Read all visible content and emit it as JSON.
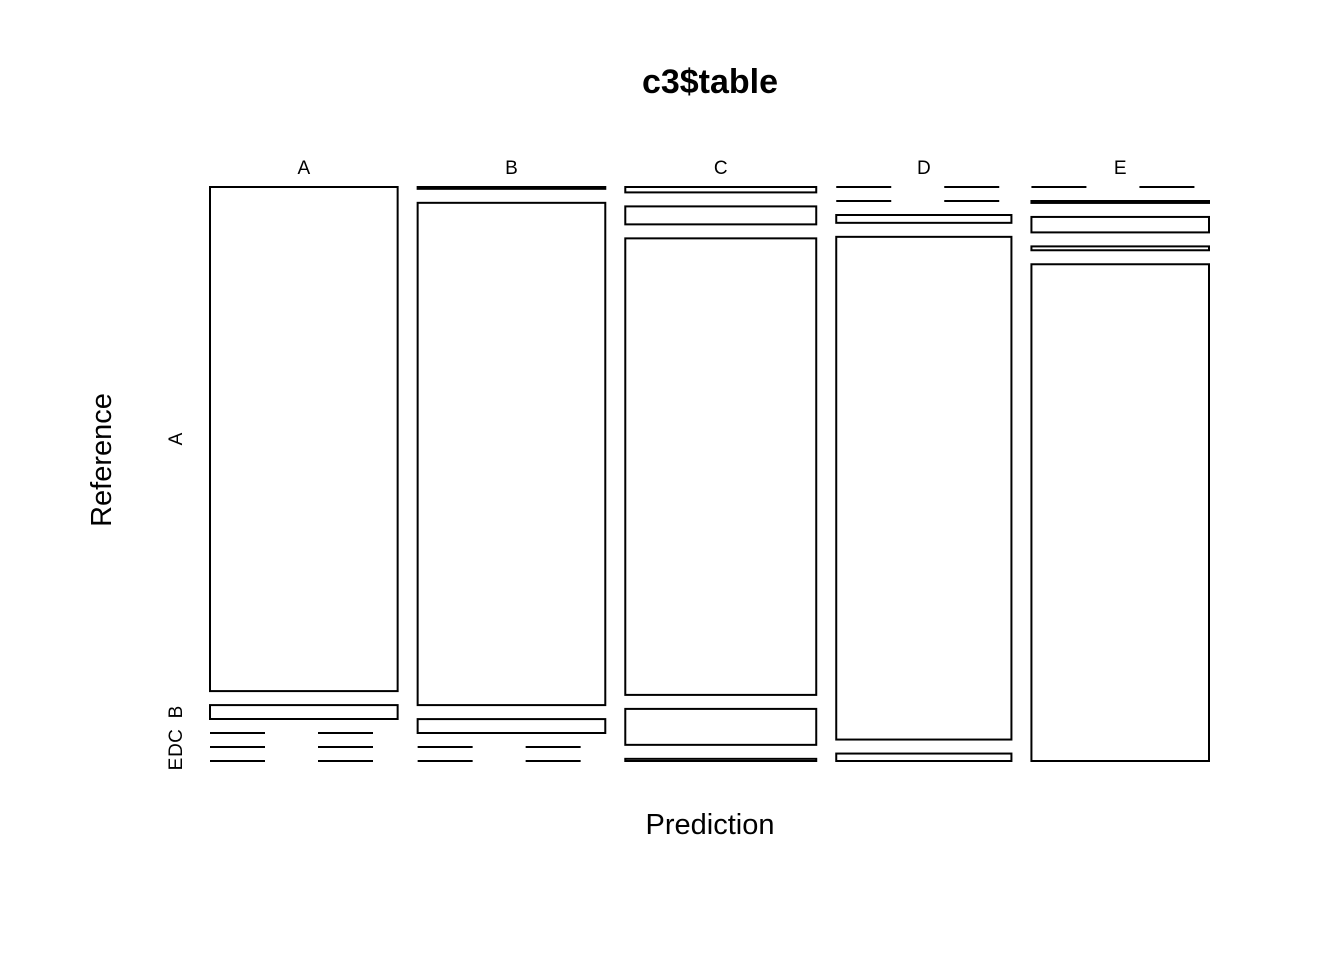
{
  "chart_data": {
    "type": "mosaic",
    "title": "c3$table",
    "xlabel": "Prediction",
    "ylabel": "Reference",
    "x_categories": [
      "A",
      "B",
      "C",
      "D",
      "E"
    ],
    "y_categories": [
      "A",
      "B",
      "C",
      "D",
      "E"
    ],
    "y_axis_labels": [
      "A",
      "B",
      "C",
      "D",
      "E"
    ],
    "counts": [
      [
        1378,
        38,
        0,
        0,
        0
      ],
      [
        5,
        1373,
        38,
        0,
        0
      ],
      [
        15,
        50,
        1270,
        100,
        6
      ],
      [
        0,
        0,
        20,
        1283,
        19
      ],
      [
        0,
        5,
        40,
        10,
        1285
      ]
    ]
  }
}
